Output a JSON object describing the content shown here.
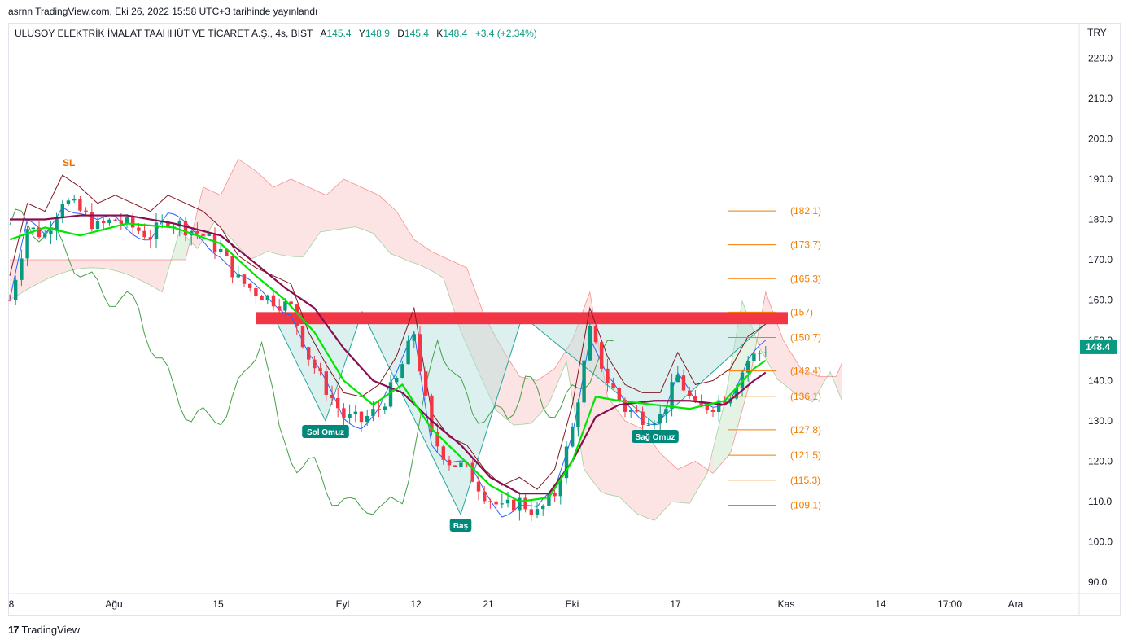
{
  "header": {
    "published": "asrnn TradingView.com, Eki 26, 2022 15:58 UTC+3 tarihinde yayınlandı"
  },
  "legend": {
    "symbol": "ULUSOY ELEKTRİK İMALAT TAAHHÜT VE TİCARET A.Ş., 4s, BIST",
    "open_label": "A",
    "open": "145.4",
    "high_label": "Y",
    "high": "148.9",
    "low_label": "D",
    "low": "145.4",
    "close_label": "K",
    "close": "148.4",
    "change": "+3.4 (+2.34%)"
  },
  "axis": {
    "currency": "TRY",
    "last_price": "148.4"
  },
  "footer": {
    "brand": "TradingView"
  },
  "colors": {
    "up": "#089981",
    "down": "#f23645",
    "fast_ma": "#00e600",
    "slow_ma": "#880e4f",
    "kijun": "#801922",
    "tenkan": "#2962ff",
    "lagging": "#43a047",
    "cloud_green": "#a5d6a7",
    "cloud_red": "#f7a4a4",
    "resistance": "#f23645",
    "pattern_fill": "#b2dfdb",
    "fib": "#f57c00"
  },
  "chart_data": {
    "type": "line",
    "title": "ULUSOY ELEKTRİK İMALAT TAAHHÜT VE TİCARET A.Ş., 4s, BIST",
    "ylabel": "TRY",
    "ylim": [
      85,
      226
    ],
    "y_ticks": [
      "220.0",
      "210.0",
      "200.0",
      "190.0",
      "180.0",
      "170.0",
      "160.0",
      "150.0",
      "140.0",
      "130.0",
      "120.0",
      "110.0",
      "100.0",
      "90.0"
    ],
    "x_ticks": [
      "8",
      "Ağu",
      "15",
      "Eyl",
      "12",
      "21",
      "Eki",
      "17",
      "Kas",
      "14",
      "17:00",
      "Ara"
    ],
    "price_path": {
      "x": [
        0,
        3,
        6,
        9,
        12,
        15,
        18,
        21,
        24,
        27,
        30,
        33,
        36,
        39,
        42,
        45,
        48,
        51,
        54,
        57,
        60,
        63,
        66,
        69,
        72,
        75,
        78,
        81,
        84,
        87,
        90,
        93,
        96,
        99,
        102,
        105,
        108,
        111,
        114,
        117,
        120,
        123,
        126,
        129
      ],
      "y": [
        160,
        178,
        176,
        185,
        182,
        178,
        180,
        178,
        176,
        180,
        178,
        176,
        172,
        165,
        162,
        160,
        158,
        146,
        138,
        131,
        130,
        133,
        140,
        152,
        126,
        120,
        118,
        112,
        108,
        110,
        107,
        112,
        128,
        152,
        140,
        133,
        131,
        131,
        141,
        133,
        134,
        137,
        145,
        148
      ]
    },
    "fast_ma": {
      "x": [
        0,
        6,
        12,
        20,
        28,
        36,
        42,
        47,
        52,
        57,
        62,
        67,
        72,
        77,
        82,
        87,
        92,
        96,
        100,
        104,
        110,
        116,
        122,
        127,
        129
      ],
      "y": [
        175,
        178,
        176,
        179,
        178,
        174,
        166,
        160,
        152,
        140,
        134,
        139,
        128,
        121,
        114,
        110,
        111,
        120,
        136,
        135,
        134,
        133,
        135,
        143,
        145
      ]
    },
    "slow_ma": {
      "x": [
        0,
        6,
        12,
        20,
        28,
        36,
        42,
        47,
        52,
        57,
        62,
        67,
        72,
        77,
        82,
        87,
        92,
        96,
        100,
        104,
        110,
        116,
        122,
        127,
        129
      ],
      "y": [
        180,
        180,
        181,
        181,
        179,
        176,
        169,
        163,
        158,
        148,
        140,
        137,
        130,
        124,
        116,
        112,
        112,
        120,
        131,
        134,
        135,
        135,
        134,
        140,
        142
      ]
    },
    "patterns": [
      {
        "label": "Sol Omuz"
      },
      {
        "label": "Baş"
      },
      {
        "label": "Sağ Omuz"
      }
    ],
    "markers": [
      {
        "label": "SL"
      }
    ],
    "resistance_zone": [
      154,
      157
    ],
    "fib_levels": [
      {
        "value": 182.1,
        "label": "(182.1)"
      },
      {
        "value": 173.7,
        "label": "(173.7)"
      },
      {
        "value": 165.3,
        "label": "(165.3)"
      },
      {
        "value": 157,
        "label": "(157)"
      },
      {
        "value": 150.7,
        "label": "(150.7)"
      },
      {
        "value": 142.4,
        "label": "(142.4)"
      },
      {
        "value": 136.1,
        "label": "(136.1)"
      },
      {
        "value": 127.8,
        "label": "(127.8)"
      },
      {
        "value": 121.5,
        "label": "(121.5)"
      },
      {
        "value": 115.3,
        "label": "(115.3)"
      },
      {
        "value": 109.1,
        "label": "(109.1)"
      }
    ],
    "grid": false
  }
}
